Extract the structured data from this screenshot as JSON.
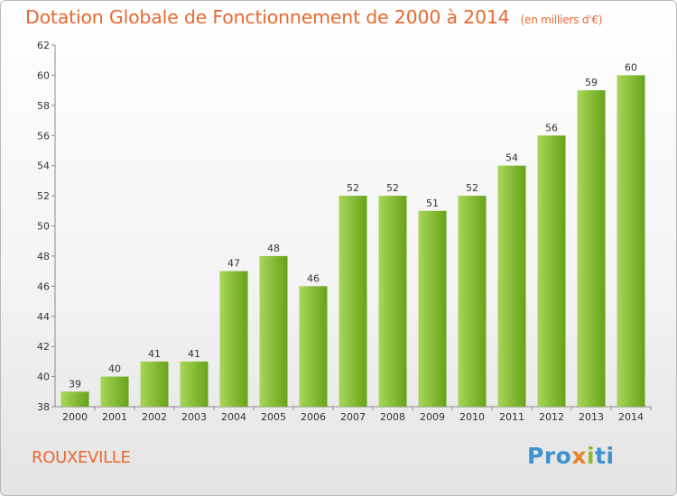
{
  "header": {
    "title": "Dotation Globale de Fonctionnement de 2000 à 2014",
    "subtitle": "(en milliers d'€)"
  },
  "footer": {
    "commune": "ROUXEVILLE",
    "logo_text": [
      "Pro",
      "x",
      "i",
      "ti"
    ]
  },
  "colors": {
    "bar_light": "#a8d65a",
    "bar_dark": "#67a319",
    "accent": "#e8692e"
  },
  "chart_data": {
    "type": "bar",
    "title": "Dotation Globale de Fonctionnement de 2000 à 2014",
    "subtitle": "(en milliers d'€)",
    "categories": [
      "2000",
      "2001",
      "2002",
      "2003",
      "2004",
      "2005",
      "2006",
      "2007",
      "2008",
      "2009",
      "2010",
      "2011",
      "2012",
      "2013",
      "2014"
    ],
    "values": [
      39,
      40,
      41,
      41,
      47,
      48,
      46,
      52,
      52,
      51,
      52,
      54,
      56,
      59,
      60
    ],
    "ylim": [
      38,
      62
    ],
    "yticks": [
      38,
      40,
      42,
      44,
      46,
      48,
      50,
      52,
      54,
      56,
      58,
      60,
      62
    ],
    "xlabel": "",
    "ylabel": "",
    "grid": false,
    "legend": "none"
  }
}
